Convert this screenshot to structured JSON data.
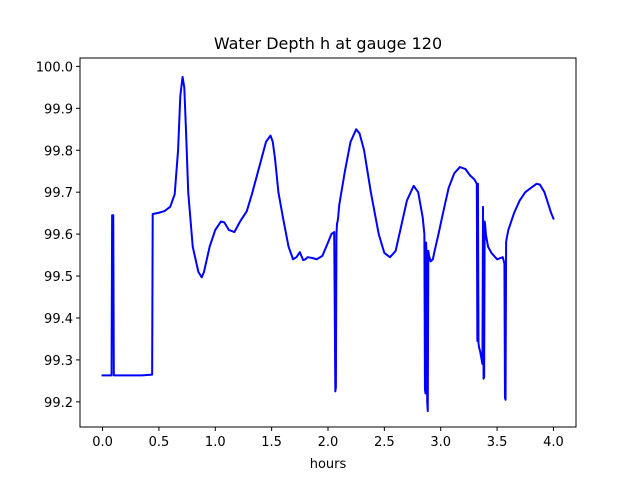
{
  "chart_data": {
    "type": "line",
    "title": "Water Depth h at gauge 120",
    "xlabel": "hours",
    "ylabel": "",
    "xlim": [
      -0.2,
      4.2
    ],
    "ylim": [
      99.14,
      100.02
    ],
    "xticks": [
      0.0,
      0.5,
      1.0,
      1.5,
      2.0,
      2.5,
      3.0,
      3.5,
      4.0
    ],
    "xtick_labels": [
      "0.0",
      "0.5",
      "1.0",
      "1.5",
      "2.0",
      "2.5",
      "3.0",
      "3.5",
      "4.0"
    ],
    "yticks": [
      99.2,
      99.3,
      99.4,
      99.5,
      99.6,
      99.7,
      99.8,
      99.9,
      100.0
    ],
    "ytick_labels": [
      "99.2",
      "99.3",
      "99.4",
      "99.5",
      "99.6",
      "99.7",
      "99.8",
      "99.9",
      "100.0"
    ],
    "grid": false,
    "legend": "none",
    "series": [
      {
        "color": "#0000ff",
        "x": [
          0.0,
          0.07,
          0.08,
          0.085,
          0.09,
          0.095,
          0.1,
          0.15,
          0.25,
          0.35,
          0.44,
          0.445,
          0.5,
          0.55,
          0.6,
          0.64,
          0.67,
          0.69,
          0.71,
          0.725,
          0.74,
          0.76,
          0.8,
          0.85,
          0.88,
          0.9,
          0.95,
          1.0,
          1.05,
          1.08,
          1.12,
          1.17,
          1.22,
          1.28,
          1.33,
          1.4,
          1.45,
          1.49,
          1.51,
          1.53,
          1.56,
          1.6,
          1.65,
          1.69,
          1.72,
          1.75,
          1.78,
          1.8,
          1.82,
          1.86,
          1.9,
          1.95,
          2.0,
          2.03,
          2.055,
          2.065,
          2.07,
          2.075,
          2.08,
          2.085,
          2.09,
          2.1,
          2.15,
          2.2,
          2.25,
          2.28,
          2.32,
          2.38,
          2.45,
          2.5,
          2.55,
          2.6,
          2.65,
          2.7,
          2.76,
          2.8,
          2.84,
          2.855,
          2.86,
          2.865,
          2.87,
          2.875,
          2.88,
          2.885,
          2.89,
          2.895,
          2.9,
          2.91,
          2.93,
          2.95,
          2.98,
          3.02,
          3.07,
          3.12,
          3.17,
          3.22,
          3.26,
          3.3,
          3.32,
          3.325,
          3.33,
          3.335,
          3.34,
          3.35,
          3.36,
          3.37,
          3.375,
          3.38,
          3.385,
          3.39,
          3.395,
          3.4,
          3.42,
          3.45,
          3.5,
          3.55,
          3.565,
          3.57,
          3.575,
          3.58,
          3.585,
          3.6,
          3.65,
          3.7,
          3.75,
          3.8,
          3.85,
          3.88,
          3.92,
          3.95,
          3.98,
          4.0
        ],
        "y": [
          99.263,
          99.263,
          99.263,
          99.645,
          99.645,
          99.645,
          99.263,
          99.263,
          99.263,
          99.263,
          99.265,
          99.648,
          99.651,
          99.655,
          99.665,
          99.695,
          99.8,
          99.93,
          99.975,
          99.95,
          99.85,
          99.7,
          99.57,
          99.51,
          99.497,
          99.51,
          99.57,
          99.61,
          99.63,
          99.628,
          99.61,
          99.605,
          99.63,
          99.655,
          99.7,
          99.77,
          99.82,
          99.835,
          99.82,
          99.78,
          99.7,
          99.64,
          99.57,
          99.54,
          99.545,
          99.557,
          99.538,
          99.54,
          99.545,
          99.543,
          99.54,
          99.548,
          99.58,
          99.6,
          99.605,
          99.225,
          99.235,
          99.6,
          99.625,
          99.63,
          99.64,
          99.67,
          99.75,
          99.82,
          99.85,
          99.84,
          99.8,
          99.7,
          99.6,
          99.555,
          99.545,
          99.56,
          99.62,
          99.68,
          99.715,
          99.7,
          99.64,
          99.6,
          99.23,
          99.22,
          99.58,
          99.55,
          99.2,
          99.178,
          99.56,
          99.55,
          99.545,
          99.535,
          99.54,
          99.565,
          99.6,
          99.65,
          99.71,
          99.745,
          99.76,
          99.755,
          99.74,
          99.73,
          99.72,
          99.345,
          99.72,
          99.34,
          99.33,
          99.32,
          99.305,
          99.29,
          99.665,
          99.255,
          99.26,
          99.63,
          99.62,
          99.6,
          99.57,
          99.555,
          99.54,
          99.545,
          99.53,
          99.21,
          99.205,
          99.58,
          99.59,
          99.61,
          99.65,
          99.68,
          99.7,
          99.71,
          99.72,
          99.718,
          99.7,
          99.675,
          99.65,
          99.637
        ]
      }
    ]
  }
}
